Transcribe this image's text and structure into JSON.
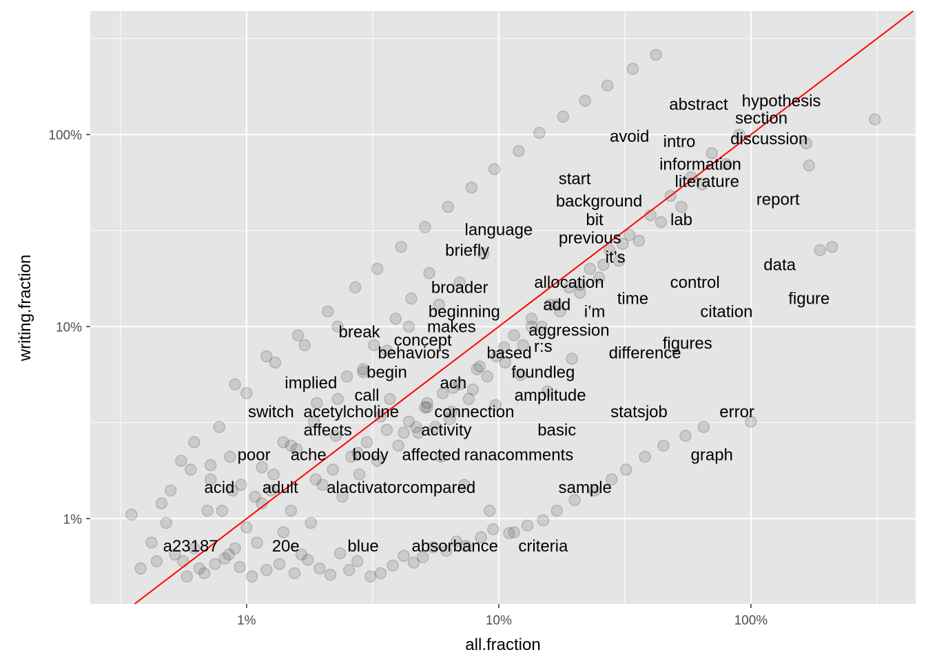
{
  "chart_data": {
    "type": "scatter",
    "xlabel": "all.fraction",
    "ylabel": "writing.fraction",
    "x_scale": "log10",
    "y_scale": "log10",
    "xlim": [
      0.0024,
      4.5
    ],
    "ylim": [
      0.0036,
      4.4
    ],
    "x_ticks": [
      {
        "value": 0.01,
        "label": "1%"
      },
      {
        "value": 0.1,
        "label": "10%"
      },
      {
        "value": 1,
        "label": "100%"
      }
    ],
    "y_ticks": [
      {
        "value": 0.01,
        "label": "1%"
      },
      {
        "value": 0.1,
        "label": "10%"
      },
      {
        "value": 1,
        "label": "100%"
      }
    ],
    "grid": true,
    "panel_background": "#e5e5e5",
    "grid_color": "#ffffff",
    "point_color": "#333333",
    "reference_line": {
      "type": "y=x",
      "color": "#ff0000"
    },
    "labels": [
      {
        "text": "abstract",
        "x": 0.62,
        "y": 1.44
      },
      {
        "text": "hypothesis",
        "x": 1.32,
        "y": 1.5
      },
      {
        "text": "section",
        "x": 1.1,
        "y": 1.22
      },
      {
        "text": "avoid",
        "x": 0.33,
        "y": 0.98
      },
      {
        "text": "intro",
        "x": 0.52,
        "y": 0.92
      },
      {
        "text": "discussion",
        "x": 1.18,
        "y": 0.95
      },
      {
        "text": "information",
        "x": 0.63,
        "y": 0.7
      },
      {
        "text": "start",
        "x": 0.2,
        "y": 0.59
      },
      {
        "text": "literature",
        "x": 0.67,
        "y": 0.57
      },
      {
        "text": "report",
        "x": 1.28,
        "y": 0.46
      },
      {
        "text": "background",
        "x": 0.25,
        "y": 0.45
      },
      {
        "text": "lab",
        "x": 0.53,
        "y": 0.36
      },
      {
        "text": "bit",
        "x": 0.24,
        "y": 0.36
      },
      {
        "text": "language",
        "x": 0.1,
        "y": 0.32
      },
      {
        "text": "previous",
        "x": 0.23,
        "y": 0.29
      },
      {
        "text": "briefly",
        "x": 0.075,
        "y": 0.25
      },
      {
        "text": "it’s",
        "x": 0.29,
        "y": 0.23
      },
      {
        "text": "data",
        "x": 1.3,
        "y": 0.21
      },
      {
        "text": "allocation",
        "x": 0.19,
        "y": 0.17
      },
      {
        "text": "control",
        "x": 0.6,
        "y": 0.17
      },
      {
        "text": "broader",
        "x": 0.07,
        "y": 0.16
      },
      {
        "text": "time",
        "x": 0.34,
        "y": 0.14
      },
      {
        "text": "figure",
        "x": 1.7,
        "y": 0.14
      },
      {
        "text": "add",
        "x": 0.17,
        "y": 0.13
      },
      {
        "text": "beginning",
        "x": 0.073,
        "y": 0.12
      },
      {
        "text": "citation",
        "x": 0.8,
        "y": 0.12
      },
      {
        "text": "i’m",
        "x": 0.24,
        "y": 0.12
      },
      {
        "text": "makes",
        "x": 0.065,
        "y": 0.1
      },
      {
        "text": "aggression",
        "x": 0.19,
        "y": 0.096
      },
      {
        "text": "break",
        "x": 0.028,
        "y": 0.094
      },
      {
        "text": "concept",
        "x": 0.05,
        "y": 0.085
      },
      {
        "text": "figures",
        "x": 0.56,
        "y": 0.082
      },
      {
        "text": "r:s",
        "x": 0.15,
        "y": 0.079
      },
      {
        "text": "behaviors",
        "x": 0.046,
        "y": 0.073
      },
      {
        "text": "based",
        "x": 0.11,
        "y": 0.073
      },
      {
        "text": "difference",
        "x": 0.38,
        "y": 0.073
      },
      {
        "text": "begin",
        "x": 0.036,
        "y": 0.058
      },
      {
        "text": "foundleg",
        "x": 0.15,
        "y": 0.058
      },
      {
        "text": "implied",
        "x": 0.018,
        "y": 0.051
      },
      {
        "text": "ach",
        "x": 0.066,
        "y": 0.051
      },
      {
        "text": "call",
        "x": 0.03,
        "y": 0.044
      },
      {
        "text": "amplitude",
        "x": 0.16,
        "y": 0.044
      },
      {
        "text": "switch",
        "x": 0.0125,
        "y": 0.036
      },
      {
        "text": "acetylcholine",
        "x": 0.026,
        "y": 0.036
      },
      {
        "text": "connection",
        "x": 0.08,
        "y": 0.036
      },
      {
        "text": "statsjob",
        "x": 0.36,
        "y": 0.036
      },
      {
        "text": "error",
        "x": 0.88,
        "y": 0.036
      },
      {
        "text": "affects",
        "x": 0.021,
        "y": 0.029
      },
      {
        "text": "activity",
        "x": 0.062,
        "y": 0.029
      },
      {
        "text": "basic",
        "x": 0.17,
        "y": 0.029
      },
      {
        "text": "poor",
        "x": 0.0107,
        "y": 0.0215
      },
      {
        "text": "ache",
        "x": 0.0176,
        "y": 0.0215
      },
      {
        "text": "body",
        "x": 0.031,
        "y": 0.0215
      },
      {
        "text": "affected",
        "x": 0.054,
        "y": 0.0215
      },
      {
        "text": "ranacomments",
        "x": 0.12,
        "y": 0.0215
      },
      {
        "text": "graph",
        "x": 0.7,
        "y": 0.0215
      },
      {
        "text": "acid",
        "x": 0.0078,
        "y": 0.0145
      },
      {
        "text": "adult",
        "x": 0.0136,
        "y": 0.0145
      },
      {
        "text": "alactivatorcompared",
        "x": 0.041,
        "y": 0.0145
      },
      {
        "text": "sample",
        "x": 0.22,
        "y": 0.0145
      },
      {
        "text": "a23187",
        "x": 0.006,
        "y": 0.0072
      },
      {
        "text": "20e",
        "x": 0.0143,
        "y": 0.0072
      },
      {
        "text": "blue",
        "x": 0.029,
        "y": 0.0072
      },
      {
        "text": "absorbance",
        "x": 0.067,
        "y": 0.0072
      },
      {
        "text": "criteria",
        "x": 0.15,
        "y": 0.0072
      }
    ],
    "points_x": [
      0.0042,
      0.0056,
      0.0065,
      0.0048,
      0.0046,
      0.005,
      0.0055,
      0.006,
      0.0072,
      0.008,
      0.0085,
      0.009,
      0.01,
      0.011,
      0.0115,
      0.0125,
      0.014,
      0.015,
      0.0165,
      0.018,
      0.02,
      0.022,
      0.024,
      0.026,
      0.028,
      0.03,
      0.033,
      0.036,
      0.04,
      0.044,
      0.048,
      0.052,
      0.056,
      0.06,
      0.065,
      0.07,
      0.076,
      0.082,
      0.09,
      0.098,
      0.106,
      0.115,
      0.125,
      0.135,
      0.148,
      0.16,
      0.175,
      0.19,
      0.21,
      0.23,
      0.25,
      0.275,
      0.3,
      0.33,
      0.36,
      0.4,
      0.44,
      0.48,
      0.53,
      0.58,
      0.64,
      0.7,
      0.8,
      0.9,
      1.0,
      1.66,
      1.7,
      1.88,
      2.1,
      3.1,
      0.0035,
      0.0038,
      0.0044,
      0.0052,
      0.0058,
      0.0062,
      0.0068,
      0.0075,
      0.0082,
      0.0094,
      0.0105,
      0.012,
      0.0135,
      0.0155,
      0.0175,
      0.0195,
      0.0215,
      0.0235,
      0.0255,
      0.0275,
      0.031,
      0.034,
      0.038,
      0.042,
      0.046,
      0.05,
      0.055,
      0.062,
      0.068,
      0.074,
      0.085,
      0.095,
      0.11,
      0.13,
      0.15,
      0.17,
      0.2,
      0.24,
      0.28,
      0.32,
      0.38,
      0.45,
      0.55,
      0.65,
      0.009,
      0.012,
      0.016,
      0.021,
      0.027,
      0.033,
      0.041,
      0.051,
      0.063,
      0.078,
      0.096,
      0.12,
      0.145,
      0.18,
      0.22,
      0.27,
      0.34,
      0.42,
      0.0078,
      0.01,
      0.013,
      0.017,
      0.023,
      0.029,
      0.037,
      0.047,
      0.059,
      0.073,
      0.092,
      0.115,
      0.0095,
      0.014,
      0.019,
      0.025,
      0.032,
      0.039,
      0.045,
      0.053,
      0.07,
      0.087,
      0.058,
      0.044,
      0.036,
      0.029,
      0.023,
      0.0185,
      0.015,
      0.0115,
      0.0088,
      0.007,
      0.051,
      0.066,
      0.084,
      0.105,
      0.135,
      0.17,
      0.21,
      0.26,
      0.31,
      0.0062,
      0.0072,
      0.0086,
      0.0108,
      0.0128,
      0.0158,
      0.0188,
      0.0226,
      0.0276,
      0.034,
      0.042,
      0.052,
      0.064,
      0.079,
      0.097,
      0.122,
      0.156,
      0.195
    ],
    "points_y": [
      0.0075,
      0.006,
      0.0055,
      0.0095,
      0.012,
      0.014,
      0.02,
      0.018,
      0.016,
      0.011,
      0.0065,
      0.007,
      0.009,
      0.0075,
      0.012,
      0.014,
      0.0085,
      0.011,
      0.0065,
      0.0095,
      0.015,
      0.018,
      0.013,
      0.021,
      0.017,
      0.025,
      0.02,
      0.029,
      0.024,
      0.032,
      0.028,
      0.038,
      0.03,
      0.045,
      0.036,
      0.05,
      0.042,
      0.06,
      0.055,
      0.07,
      0.065,
      0.09,
      0.08,
      0.11,
      0.1,
      0.13,
      0.12,
      0.16,
      0.15,
      0.2,
      0.18,
      0.25,
      0.22,
      0.3,
      0.28,
      0.38,
      0.35,
      0.48,
      0.42,
      0.6,
      0.55,
      0.8,
      0.7,
      1.0,
      0.032,
      0.9,
      0.69,
      0.25,
      0.26,
      1.2,
      0.0105,
      0.0055,
      0.006,
      0.0065,
      0.005,
      0.007,
      0.0052,
      0.0058,
      0.0062,
      0.0056,
      0.005,
      0.0054,
      0.0058,
      0.0052,
      0.0061,
      0.0055,
      0.0051,
      0.0066,
      0.0054,
      0.006,
      0.005,
      0.0052,
      0.0057,
      0.0064,
      0.0059,
      0.0063,
      0.0071,
      0.0068,
      0.0076,
      0.0072,
      0.008,
      0.0088,
      0.0084,
      0.0092,
      0.0098,
      0.011,
      0.0125,
      0.014,
      0.016,
      0.018,
      0.021,
      0.024,
      0.027,
      0.03,
      0.05,
      0.07,
      0.09,
      0.12,
      0.16,
      0.2,
      0.26,
      0.33,
      0.42,
      0.53,
      0.66,
      0.82,
      1.02,
      1.24,
      1.5,
      1.8,
      2.2,
      2.6,
      0.03,
      0.045,
      0.065,
      0.08,
      0.1,
      0.06,
      0.042,
      0.03,
      0.021,
      0.015,
      0.011,
      0.0085,
      0.015,
      0.025,
      0.04,
      0.055,
      0.08,
      0.11,
      0.14,
      0.19,
      0.17,
      0.24,
      0.13,
      0.1,
      0.075,
      0.058,
      0.042,
      0.032,
      0.024,
      0.0185,
      0.014,
      0.011,
      0.038,
      0.048,
      0.062,
      0.078,
      0.1,
      0.13,
      0.165,
      0.21,
      0.27,
      0.025,
      0.019,
      0.021,
      0.013,
      0.017,
      0.023,
      0.016,
      0.027,
      0.022,
      0.034,
      0.028,
      0.04,
      0.033,
      0.047,
      0.039,
      0.056,
      0.046,
      0.068
    ]
  }
}
